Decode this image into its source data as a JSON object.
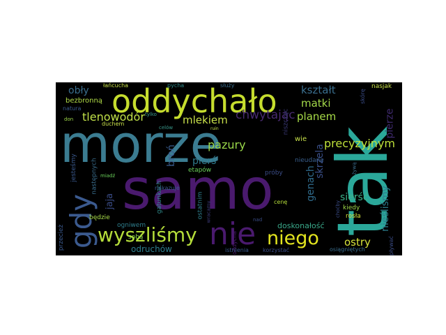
{
  "words": [
    {
      "text": "morze",
      "color": "#3b7c91"
    },
    {
      "text": "tak",
      "color": "#2ba89a"
    },
    {
      "text": "samo",
      "color": "#4a1a6e"
    },
    {
      "text": "oddychało",
      "color": "#c6dd2e"
    },
    {
      "text": "nie",
      "color": "#4a1a6e"
    },
    {
      "text": "wyszliśmy",
      "color": "#b5dd3a"
    },
    {
      "text": "gdy",
      "color": "#3b5a8f"
    },
    {
      "text": "niego",
      "color": "#e2e41f"
    },
    {
      "text": "chwytając",
      "color": "#482a6f"
    },
    {
      "text": "precyzyjnym",
      "color": "#bfe23a"
    },
    {
      "text": "tlenowodór",
      "color": "#c0e048"
    },
    {
      "text": "mlekiem",
      "color": "#c8e04a"
    },
    {
      "text": "pazury",
      "color": "#9ad84a"
    },
    {
      "text": "kształt",
      "color": "#3a6e8e"
    },
    {
      "text": "matki",
      "color": "#a3d94a"
    },
    {
      "text": "planem",
      "color": "#a8dc48"
    },
    {
      "text": "pierze",
      "color": "#3f2a6e"
    },
    {
      "text": "skrzela",
      "color": "#3a4f88"
    },
    {
      "text": "genach",
      "color": "#2f6b8c"
    },
    {
      "text": "sierść",
      "color": "#3bb38a"
    },
    {
      "text": "nieśliśmy",
      "color": "#2c7f8e"
    },
    {
      "text": "ostry",
      "color": "#d8e43a"
    },
    {
      "text": "pierś",
      "color": "#2f7a8c"
    },
    {
      "text": "broń",
      "color": "#3a5c8d"
    },
    {
      "text": "jaja",
      "color": "#3b4d88"
    },
    {
      "text": "obły",
      "color": "#3a6e8e"
    },
    {
      "text": "odruchów",
      "color": "#2f7f8e"
    },
    {
      "text": "doskonałość",
      "color": "#3aa98a"
    },
    {
      "text": "kiedy",
      "color": "#9fd84a"
    },
    {
      "text": "rosła",
      "color": "#d4e23a"
    },
    {
      "text": "nieudane",
      "color": "#3a5f8d"
    },
    {
      "text": "wie",
      "color": "#c8e04a"
    },
    {
      "text": "gatunkach",
      "color": "#2f8a8a"
    },
    {
      "text": "ostatnim",
      "color": "#2f7f8e"
    },
    {
      "text": "etapów",
      "color": "#6ad05a"
    },
    {
      "text": "próby",
      "color": "#3b4d88"
    },
    {
      "text": "niszcząc",
      "color": "#3b3a78"
    },
    {
      "text": "bezbronną",
      "color": "#b2dd48"
    },
    {
      "text": "następnych",
      "color": "#3a6e8e"
    },
    {
      "text": "jesteśmy",
      "color": "#3b5a8f"
    },
    {
      "text": "będzie",
      "color": "#a8dc48"
    },
    {
      "text": "ogniwem",
      "color": "#2f7f8e"
    },
    {
      "text": "przecież",
      "color": "#3b5a8f"
    },
    {
      "text": "sobą",
      "color": "#8fd44a"
    },
    {
      "text": "cenę",
      "color": "#b5dd3a"
    },
    {
      "text": "nakazuje",
      "color": "#3b5a8f"
    },
    {
      "text": "oddycha",
      "color": "#4a1a6e"
    },
    {
      "text": "osiągniętych",
      "color": "#3a6e8e"
    },
    {
      "text": "korzystać",
      "color": "#3b4d88"
    },
    {
      "text": "istnienia",
      "color": "#3b5a8f"
    },
    {
      "text": "pływać",
      "color": "#3b4d88"
    },
    {
      "text": "nasjak",
      "color": "#c8e04a"
    },
    {
      "text": "łańcucha",
      "color": "#c8e04a"
    },
    {
      "text": "pycha",
      "color": "#2f8a8a"
    },
    {
      "text": "służy",
      "color": "#3a6e8e"
    },
    {
      "text": "skórę",
      "color": "#3b4d88"
    },
    {
      "text": "tylko",
      "color": "#3a9a8c"
    },
    {
      "text": "natura",
      "color": "#3b5a8f"
    },
    {
      "text": "don",
      "color": "#9fd84a"
    },
    {
      "text": "duchem",
      "color": "#c8e04a"
    },
    {
      "text": "celów",
      "color": "#3a9a8c"
    },
    {
      "text": "miadź",
      "color": "#6ad05a"
    },
    {
      "text": "wracamy",
      "color": "#3b3a78"
    },
    {
      "text": "nad",
      "color": "#3b4d88"
    },
    {
      "text": "choćby",
      "color": "#3b4d88"
    },
    {
      "text": "żywą",
      "color": "#3a6e8e"
    },
    {
      "text": "ruin",
      "color": "#c8e04a"
    }
  ]
}
